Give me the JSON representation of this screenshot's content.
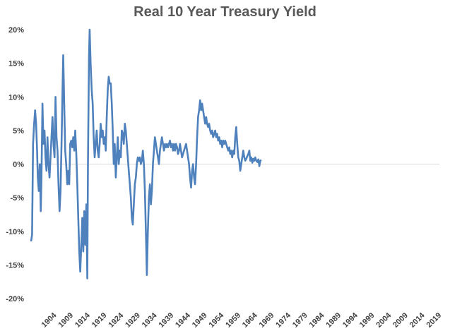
{
  "chart_data": {
    "type": "line",
    "title": "Real 10 Year Treasury Yield",
    "xlabel": "",
    "ylabel": "",
    "ylim": [
      -20,
      20
    ],
    "xlim": [
      1899,
      2021
    ],
    "y_ticks": [
      "20%",
      "15%",
      "10%",
      "5%",
      "0%",
      "-5%",
      "-10%",
      "-15%",
      "-20%"
    ],
    "x_ticks": [
      "1904",
      "1909",
      "1914",
      "1919",
      "1924",
      "1929",
      "1934",
      "1939",
      "1944",
      "1949",
      "1954",
      "1959",
      "1964",
      "1969",
      "1974",
      "1979",
      "1984",
      "1989",
      "1994",
      "1999",
      "2004",
      "2009",
      "2014",
      "2019"
    ],
    "grid": false,
    "line_color": "#4f81bd",
    "series": [
      {
        "name": "",
        "points": [
          [
            1899.0,
            -11.5
          ],
          [
            1899.3,
            -10.5
          ],
          [
            1899.6,
            3
          ],
          [
            1899.9,
            6
          ],
          [
            1900.2,
            8
          ],
          [
            1900.5,
            6
          ],
          [
            1900.8,
            2
          ],
          [
            1901.0,
            -2
          ],
          [
            1901.3,
            -4
          ],
          [
            1901.6,
            0
          ],
          [
            1901.9,
            -7
          ],
          [
            1902.1,
            -2
          ],
          [
            1902.4,
            9
          ],
          [
            1902.7,
            3
          ],
          [
            1903.0,
            5
          ],
          [
            1903.3,
            1
          ],
          [
            1903.6,
            -1
          ],
          [
            1903.9,
            4
          ],
          [
            1904.2,
            0
          ],
          [
            1904.5,
            -2
          ],
          [
            1904.8,
            1
          ],
          [
            1905.1,
            4
          ],
          [
            1905.4,
            7
          ],
          [
            1905.7,
            3
          ],
          [
            1906.0,
            1
          ],
          [
            1906.3,
            10
          ],
          [
            1906.6,
            4
          ],
          [
            1906.9,
            2
          ],
          [
            1907.2,
            -3
          ],
          [
            1907.5,
            -7
          ],
          [
            1907.8,
            -4
          ],
          [
            1908.1,
            3
          ],
          [
            1908.4,
            11
          ],
          [
            1908.6,
            16.2
          ],
          [
            1908.9,
            9
          ],
          [
            1909.2,
            2
          ],
          [
            1909.5,
            0
          ],
          [
            1909.8,
            -3
          ],
          [
            1910.1,
            -1
          ],
          [
            1910.4,
            -3
          ],
          [
            1910.7,
            3
          ],
          [
            1911.0,
            3.5
          ],
          [
            1911.3,
            2.5
          ],
          [
            1911.6,
            4
          ],
          [
            1911.9,
            2
          ],
          [
            1912.2,
            5
          ],
          [
            1912.5,
            1.5
          ],
          [
            1912.8,
            -3
          ],
          [
            1913.1,
            -8
          ],
          [
            1913.4,
            -13
          ],
          [
            1913.7,
            -16
          ],
          [
            1914.0,
            -12
          ],
          [
            1914.3,
            -8
          ],
          [
            1914.6,
            -13
          ],
          [
            1914.9,
            -7
          ],
          [
            1915.2,
            -12
          ],
          [
            1915.5,
            -6
          ],
          [
            1915.8,
            -17
          ],
          [
            1916.0,
            0
          ],
          [
            1916.3,
            16
          ],
          [
            1916.5,
            20
          ],
          [
            1916.8,
            15
          ],
          [
            1917.1,
            11
          ],
          [
            1917.4,
            9
          ],
          [
            1917.7,
            4
          ],
          [
            1918.0,
            1
          ],
          [
            1918.3,
            3
          ],
          [
            1918.6,
            5
          ],
          [
            1918.9,
            2
          ],
          [
            1919.2,
            1
          ],
          [
            1919.5,
            3
          ],
          [
            1919.8,
            6
          ],
          [
            1920.1,
            4
          ],
          [
            1920.4,
            5
          ],
          [
            1920.7,
            3
          ],
          [
            1921.0,
            4
          ],
          [
            1921.3,
            2
          ],
          [
            1921.6,
            7
          ],
          [
            1921.9,
            11
          ],
          [
            1922.2,
            13
          ],
          [
            1922.5,
            12
          ],
          [
            1922.8,
            12
          ],
          [
            1923.1,
            9
          ],
          [
            1923.4,
            5
          ],
          [
            1923.7,
            0
          ],
          [
            1924.0,
            3
          ],
          [
            1924.3,
            -2
          ],
          [
            1924.6,
            1
          ],
          [
            1924.9,
            4
          ],
          [
            1925.2,
            0
          ],
          [
            1925.5,
            2
          ],
          [
            1925.8,
            1
          ],
          [
            1926.1,
            5
          ],
          [
            1926.4,
            4.5
          ],
          [
            1926.7,
            3
          ],
          [
            1927.0,
            6
          ],
          [
            1927.3,
            5
          ],
          [
            1927.6,
            3
          ],
          [
            1927.9,
            1
          ],
          [
            1928.2,
            -1
          ],
          [
            1928.5,
            -3
          ],
          [
            1928.8,
            -5
          ],
          [
            1929.1,
            -8
          ],
          [
            1929.4,
            -9
          ],
          [
            1929.7,
            -6
          ],
          [
            1930.0,
            -3
          ],
          [
            1930.3,
            -2
          ],
          [
            1930.6,
            0
          ],
          [
            1930.9,
            1
          ],
          [
            1931.2,
            0.5
          ],
          [
            1931.5,
            1
          ],
          [
            1931.8,
            0
          ],
          [
            1932.1,
            0.5
          ],
          [
            1932.4,
            2
          ],
          [
            1932.7,
            0
          ],
          [
            1933.0,
            -4
          ],
          [
            1933.3,
            -10
          ],
          [
            1933.6,
            -16.5
          ],
          [
            1933.9,
            -10
          ],
          [
            1934.2,
            -5
          ],
          [
            1934.5,
            -3
          ],
          [
            1934.8,
            -6
          ],
          [
            1935.1,
            -4
          ],
          [
            1935.4,
            0
          ],
          [
            1935.7,
            2
          ],
          [
            1936.0,
            4
          ],
          [
            1936.3,
            3
          ],
          [
            1936.6,
            2
          ],
          [
            1936.9,
            1
          ],
          [
            1937.2,
            0
          ],
          [
            1937.5,
            2
          ],
          [
            1937.8,
            3
          ],
          [
            1938.1,
            4
          ],
          [
            1938.4,
            3
          ],
          [
            1938.7,
            2
          ],
          [
            1939.0,
            3
          ],
          [
            1939.3,
            2.5
          ],
          [
            1939.6,
            3
          ],
          [
            1939.9,
            2.5
          ],
          [
            1940.2,
            3
          ],
          [
            1940.5,
            3.5
          ],
          [
            1940.8,
            2.5
          ],
          [
            1941.1,
            3
          ],
          [
            1941.4,
            2
          ],
          [
            1941.7,
            3
          ],
          [
            1942.0,
            2
          ],
          [
            1942.3,
            3
          ],
          [
            1942.6,
            2.5
          ],
          [
            1942.9,
            1.5
          ],
          [
            1943.2,
            2
          ],
          [
            1943.5,
            3
          ],
          [
            1943.8,
            2
          ],
          [
            1944.1,
            1
          ],
          [
            1944.4,
            1.5
          ],
          [
            1944.7,
            2
          ],
          [
            1945.0,
            2.5
          ],
          [
            1945.3,
            3
          ],
          [
            1945.6,
            2
          ],
          [
            1945.9,
            1
          ],
          [
            1946.2,
            0
          ],
          [
            1946.5,
            -2
          ],
          [
            1946.8,
            -3.5
          ],
          [
            1947.1,
            -1
          ],
          [
            1947.4,
            0
          ],
          [
            1947.7,
            -2
          ],
          [
            1948.0,
            -3
          ],
          [
            1948.3,
            0
          ],
          [
            1948.6,
            4
          ],
          [
            1948.9,
            7
          ],
          [
            1949.2,
            8
          ],
          [
            1949.5,
            9.5
          ],
          [
            1949.8,
            8
          ],
          [
            1950.1,
            9
          ],
          [
            1950.4,
            8
          ],
          [
            1950.7,
            7
          ],
          [
            1951.0,
            6
          ],
          [
            1951.3,
            7
          ],
          [
            1951.6,
            6
          ],
          [
            1951.9,
            5.5
          ],
          [
            1952.2,
            6
          ],
          [
            1952.5,
            5
          ],
          [
            1952.8,
            4.5
          ],
          [
            1953.1,
            5
          ],
          [
            1953.4,
            4
          ],
          [
            1953.7,
            4.5
          ],
          [
            1954.0,
            5
          ],
          [
            1954.3,
            4
          ],
          [
            1954.6,
            4.5
          ],
          [
            1954.9,
            3.5
          ],
          [
            1955.2,
            4
          ],
          [
            1955.5,
            3
          ],
          [
            1955.8,
            3.5
          ],
          [
            1956.1,
            2.5
          ],
          [
            1956.4,
            3.5
          ],
          [
            1956.7,
            3
          ],
          [
            1957.0,
            3.5
          ],
          [
            1957.3,
            3
          ],
          [
            1957.6,
            2.5
          ],
          [
            1957.9,
            2
          ],
          [
            1958.2,
            2.5
          ],
          [
            1958.5,
            1.5
          ],
          [
            1958.8,
            2
          ],
          [
            1959.1,
            1
          ],
          [
            1959.4,
            2
          ],
          [
            1959.7,
            1.5
          ],
          [
            1960.0,
            4
          ],
          [
            1960.3,
            5.5
          ],
          [
            1960.6,
            3
          ],
          [
            1960.9,
            1
          ],
          [
            1961.2,
            0.5
          ],
          [
            1961.5,
            -1
          ],
          [
            1961.8,
            0
          ],
          [
            1962.1,
            1
          ],
          [
            1962.4,
            2
          ],
          [
            1962.7,
            1
          ],
          [
            1963.0,
            0.5
          ],
          [
            1963.3,
            0.8
          ],
          [
            1963.6,
            1.2
          ],
          [
            1963.9,
            1.5
          ],
          [
            1964.2,
            2
          ],
          [
            1964.5,
            0.5
          ],
          [
            1964.8,
            1
          ],
          [
            1965.1,
            0.2
          ],
          [
            1965.4,
            0.8
          ],
          [
            1965.7,
            0.5
          ],
          [
            1966.0,
            1
          ],
          [
            1966.3,
            0.5
          ],
          [
            1966.6,
            0.3
          ],
          [
            1966.9,
            0.7
          ],
          [
            1967.2,
            -0.3
          ],
          [
            1967.5,
            0.5
          ],
          [
            1967.8,
            0.6
          ]
        ]
      }
    ]
  }
}
